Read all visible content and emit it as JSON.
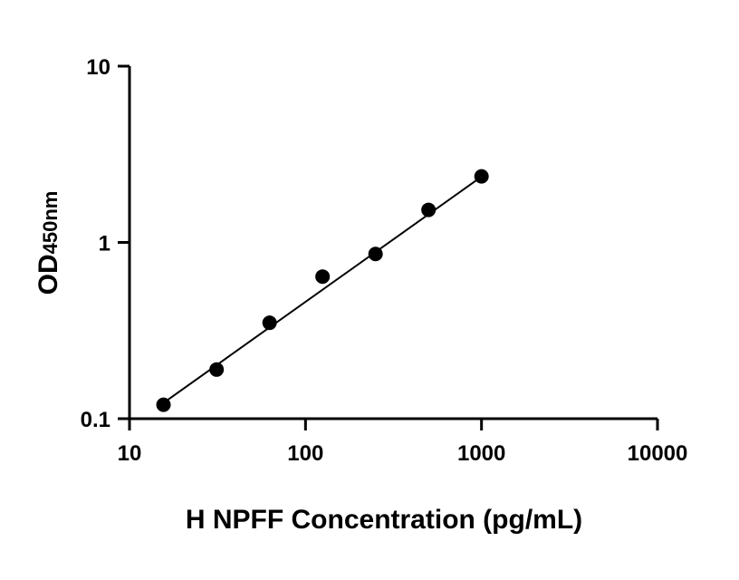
{
  "chart_data": {
    "type": "scatter",
    "xlabel": "H NPFF Concentration (pg/mL)",
    "ylabel": "OD",
    "ylabel_subscript": "450nm",
    "x_scale": "log",
    "y_scale": "log",
    "xlim": [
      10,
      10000
    ],
    "ylim": [
      0.1,
      10
    ],
    "x_ticks": [
      "10",
      "100",
      "1000",
      "10000"
    ],
    "y_ticks": [
      "0.1",
      "1",
      "10"
    ],
    "x_tick_values": [
      10,
      100,
      1000,
      10000
    ],
    "y_tick_values": [
      0.1,
      1,
      10
    ],
    "grid": false,
    "series": [
      {
        "x": [
          15.6,
          31.25,
          62.5,
          125,
          250,
          500,
          1000
        ],
        "y": [
          0.12,
          0.19,
          0.35,
          0.64,
          0.86,
          1.53,
          2.37
        ],
        "fit": "linear-log-log",
        "fit_x_range": [
          15.6,
          1000
        ],
        "fit_y_range": [
          0.123,
          2.36
        ]
      }
    ],
    "colors": {
      "points": "#000000",
      "line": "#000000",
      "axes": "#000000"
    }
  }
}
